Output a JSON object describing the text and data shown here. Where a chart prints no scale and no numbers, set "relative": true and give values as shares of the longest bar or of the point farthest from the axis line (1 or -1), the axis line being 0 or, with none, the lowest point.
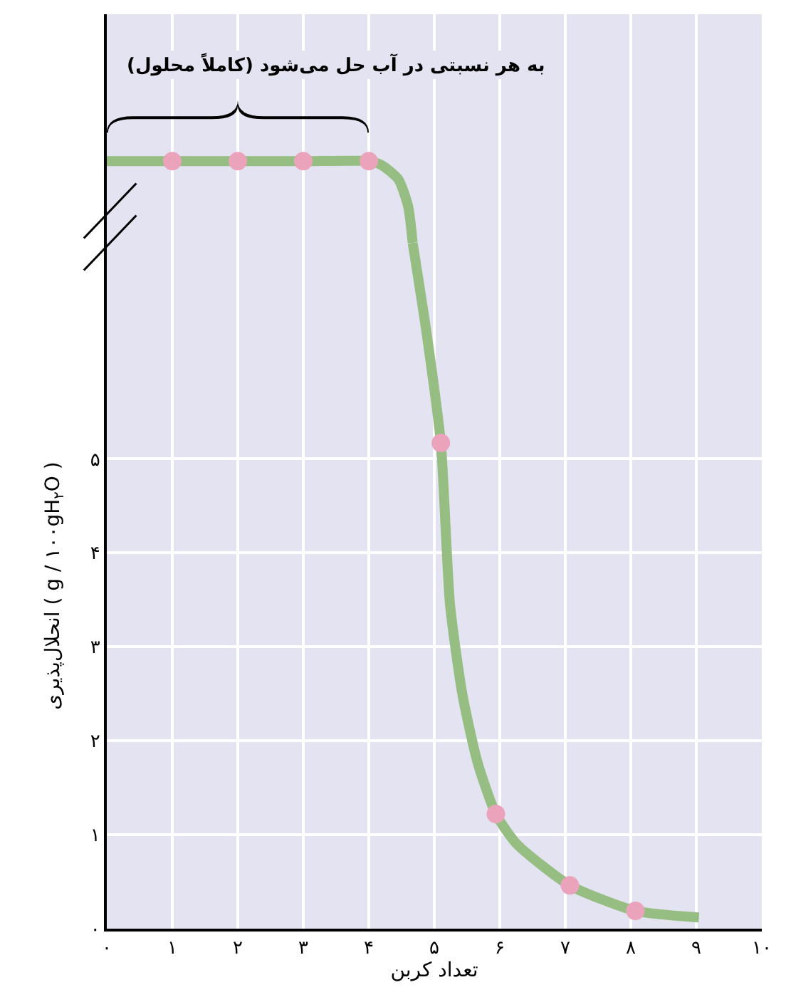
{
  "chart_data": [
    {
      "type": "line",
      "relative": true,
      "xlim": [
        0,
        10
      ],
      "grid": "x",
      "tick_labels": false,
      "xticks": [
        0,
        1,
        2,
        3,
        4,
        5,
        6,
        7,
        8,
        9,
        10
      ],
      "annotations": [
        "به هر نسبتی در آب حل می‌شود (کاملاً محلول)"
      ],
      "series": [
        {
          "color": "#97be82",
          "marker": "none",
          "x": [
            0,
            1,
            2,
            3,
            4,
            4.2,
            4.45,
            4.6,
            4.67
          ],
          "values": [
            1,
            1,
            1,
            1,
            1,
            0.95,
            0.78,
            0.45,
            0
          ]
        },
        {
          "type": "scatter",
          "marker": "circle",
          "color": "#eba3bb",
          "x": [
            1,
            2,
            3,
            4
          ],
          "values": [
            1,
            1,
            1,
            1
          ]
        }
      ]
    },
    {
      "type": "line",
      "xlabel": "تعداد کربن",
      "ylabel": "انحلال‌پذیری ( g / ۱۰۰gH$_{۲}$O )",
      "xlim": [
        0,
        10
      ],
      "ylim": [
        0,
        7.3
      ],
      "grid": true,
      "xticks": [
        {
          "value": 0,
          "label": "۰"
        },
        {
          "value": 1,
          "label": "۱"
        },
        {
          "value": 2,
          "label": "۲"
        },
        {
          "value": 3,
          "label": "۳"
        },
        {
          "value": 4,
          "label": "۴"
        },
        {
          "value": 5,
          "label": "۵"
        },
        {
          "value": 6,
          "label": "۶"
        },
        {
          "value": 7,
          "label": "۷"
        },
        {
          "value": 8,
          "label": "۸"
        },
        {
          "value": 9,
          "label": "۹"
        },
        {
          "value": 10,
          "label": "۱۰"
        }
      ],
      "yticks": [
        {
          "value": 0,
          "label": "۰"
        },
        {
          "value": 1,
          "label": "۱"
        },
        {
          "value": 2,
          "label": "۲"
        },
        {
          "value": 3,
          "label": "۳"
        },
        {
          "value": 4,
          "label": "۴"
        },
        {
          "value": 5,
          "label": "۵"
        }
      ],
      "series": [
        {
          "color": "#97be82",
          "marker": "none",
          "x": [
            4.67,
            4.88,
            5.1,
            5.24,
            5.43,
            5.66,
            5.94,
            6.26,
            7.07,
            8.07,
            9.04
          ],
          "values": [
            7.3,
            6.35,
            5.17,
            3.45,
            2.49,
            1.77,
            1.22,
            0.9,
            0.46,
            0.19,
            0.12
          ]
        },
        {
          "type": "scatter",
          "marker": "circle",
          "color": "#eba3bb",
          "x": [
            5.1,
            5.94,
            7.07,
            8.07
          ],
          "values": [
            5.17,
            1.22,
            0.46,
            0.19
          ]
        }
      ]
    }
  ]
}
